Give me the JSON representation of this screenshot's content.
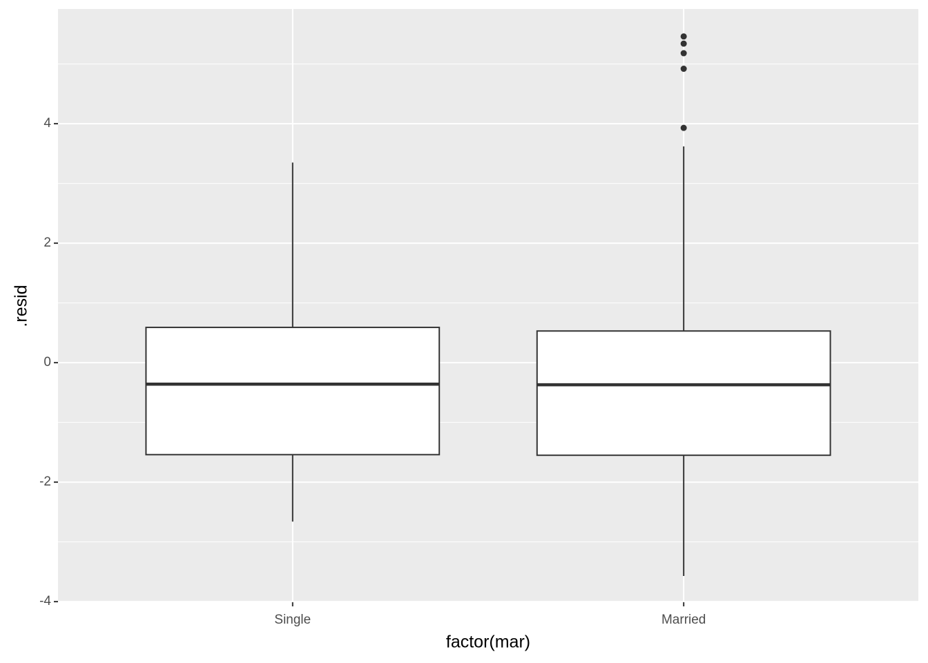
{
  "chart_data": {
    "type": "boxplot",
    "x_label": "factor(mar)",
    "y_label": ".resid",
    "categories": [
      "Single",
      "Married"
    ],
    "boxes": [
      {
        "low": -2.66,
        "q1": -1.54,
        "median": -0.36,
        "q3": 0.59,
        "high": 3.35,
        "outliers": []
      },
      {
        "low": -3.57,
        "q1": -1.55,
        "median": -0.37,
        "q3": 0.53,
        "high": 3.62,
        "outliers": [
          5.46,
          5.34,
          5.18,
          4.92,
          3.93
        ]
      }
    ],
    "ylim": [
      -4.01,
      5.92
    ],
    "yticks": [
      -4,
      -2,
      0,
      2,
      4
    ],
    "yminor": [
      -3,
      -1,
      1,
      3,
      5
    ],
    "grid": true
  }
}
